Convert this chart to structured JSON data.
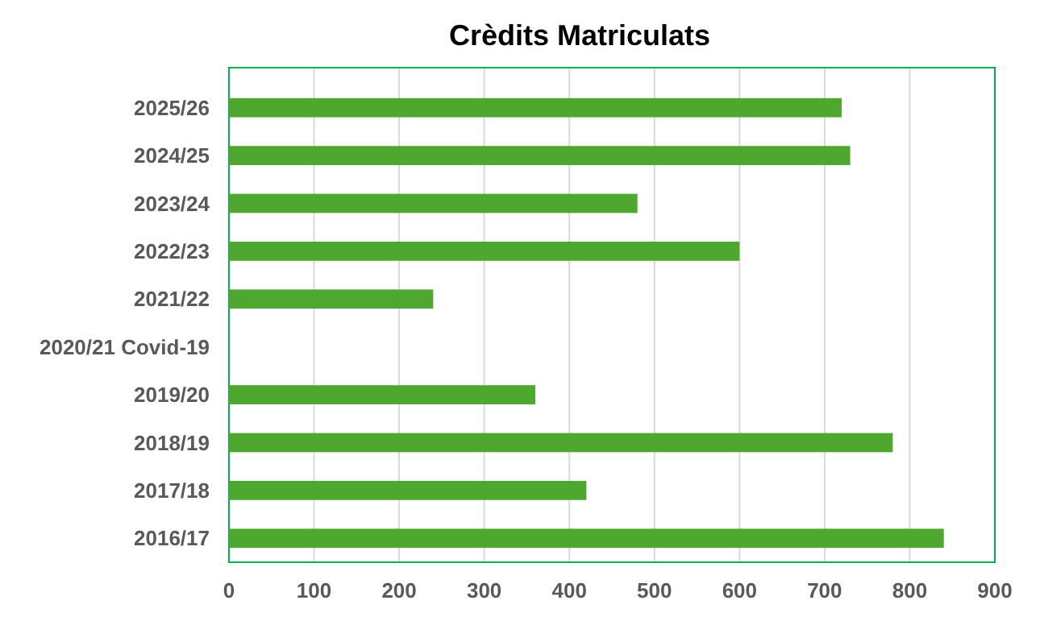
{
  "chart_data": {
    "type": "bar",
    "orientation": "horizontal",
    "title": "Crèdits Matriculats",
    "categories": [
      "2025/26",
      "2024/25",
      "2023/24",
      "2022/23",
      "2021/22",
      "2020/21 Covid-19",
      "2019/20",
      "2018/19",
      "2017/18",
      "2016/17"
    ],
    "values": [
      720,
      730,
      480,
      600,
      240,
      null,
      360,
      780,
      420,
      840
    ],
    "color": "#4ea72e",
    "xlim": [
      0,
      900
    ],
    "xticks": [
      0,
      100,
      200,
      300,
      400,
      500,
      600,
      700,
      800,
      900
    ],
    "grid": "x"
  }
}
